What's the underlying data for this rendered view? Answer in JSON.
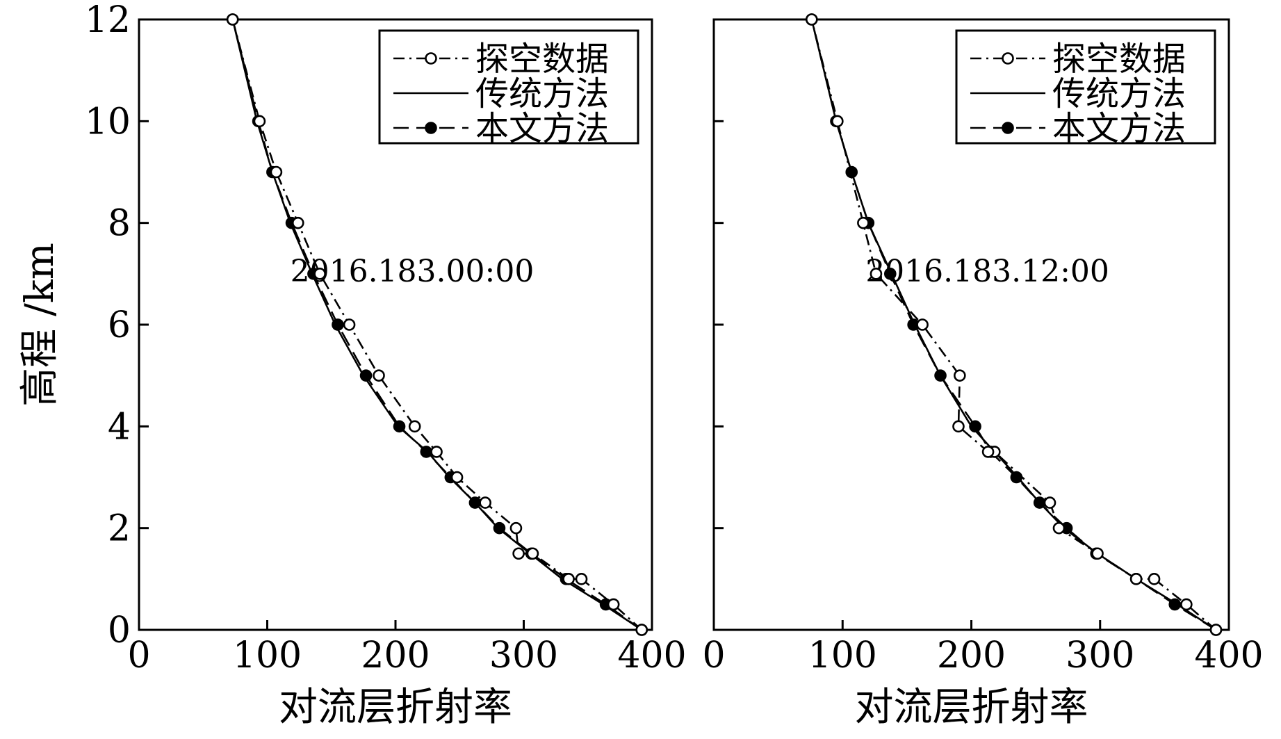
{
  "chart_data": [
    {
      "type": "line",
      "title": "",
      "annotation": "2016.183.00:00",
      "xlabel": "对流层折射率",
      "ylabel": "高程 /km",
      "xlim": [
        0,
        400
      ],
      "ylim": [
        0,
        12
      ],
      "xticks": [
        "0",
        "100",
        "200",
        "300",
        "400"
      ],
      "yticks": [
        "0",
        "2",
        "4",
        "6",
        "8",
        "10",
        "12"
      ],
      "legend_position": "top-right",
      "series": [
        {
          "name": "探空数据",
          "style": "dash-dot-open-circle",
          "x": [
            392,
            370,
            345,
            335,
            307,
            296,
            294,
            270,
            248,
            232,
            215,
            187,
            164,
            141,
            124,
            107,
            94,
            73
          ],
          "y": [
            0,
            0.5,
            1.0,
            1.0,
            1.5,
            1.5,
            2.0,
            2.5,
            3.0,
            3.5,
            4.0,
            5.0,
            6.0,
            7.0,
            8.0,
            9.0,
            10.0,
            12.0
          ]
        },
        {
          "name": "传统方法",
          "style": "solid",
          "x": [
            392,
            362,
            330,
            305,
            280,
            262,
            242,
            225,
            202,
            175,
            153,
            135,
            118,
            104,
            92,
            73
          ],
          "y": [
            0,
            0.5,
            1.0,
            1.5,
            2.0,
            2.5,
            3.0,
            3.5,
            4.0,
            5.0,
            6.0,
            7.0,
            8.0,
            9.0,
            10.0,
            12.0
          ]
        },
        {
          "name": "本文方法",
          "style": "dashed-filled-circle",
          "x": [
            392,
            364,
            333,
            306,
            281,
            262,
            243,
            224,
            203,
            177,
            155,
            136,
            119,
            104,
            93,
            73
          ],
          "y": [
            0,
            0.5,
            1.0,
            1.5,
            2.0,
            2.5,
            3.0,
            3.5,
            4.0,
            5.0,
            6.0,
            7.0,
            8.0,
            9.0,
            10.0,
            12.0
          ]
        }
      ]
    },
    {
      "type": "line",
      "title": "",
      "annotation": "2016.183.12:00",
      "xlabel": "对流层折射率",
      "ylabel": "",
      "xlim": [
        0,
        400
      ],
      "ylim": [
        0,
        12
      ],
      "xticks": [
        "0",
        "100",
        "200",
        "300",
        "400"
      ],
      "yticks": [],
      "legend_position": "top-right",
      "series": [
        {
          "name": "探空数据",
          "style": "dash-dot-open-circle",
          "x": [
            390,
            367,
            342,
            328,
            298,
            268,
            261,
            218,
            213,
            190,
            191,
            162,
            126,
            116,
            96,
            76
          ],
          "y": [
            0,
            0.5,
            1.0,
            1.0,
            1.5,
            2.0,
            2.5,
            3.5,
            3.5,
            4.0,
            5.0,
            6.0,
            7.0,
            8.0,
            10.0,
            12.0
          ]
        },
        {
          "name": "传统方法",
          "style": "solid",
          "x": [
            390,
            360,
            328,
            298,
            272,
            253,
            236,
            218,
            200,
            176,
            156,
            138,
            120,
            107,
            95,
            76
          ],
          "y": [
            0,
            0.5,
            1.0,
            1.5,
            2.0,
            2.5,
            3.0,
            3.5,
            4.0,
            5.0,
            6.0,
            7.0,
            8.0,
            9.0,
            10.0,
            12.0
          ]
        },
        {
          "name": "本文方法",
          "style": "dashed-filled-circle",
          "x": [
            390,
            358,
            328,
            297,
            274,
            253,
            235,
            215,
            203,
            176,
            155,
            137,
            120,
            107,
            95,
            76
          ],
          "y": [
            0,
            0.5,
            1.0,
            1.5,
            2.0,
            2.5,
            3.0,
            3.5,
            4.0,
            5.0,
            6.0,
            7.0,
            8.0,
            9.0,
            10.0,
            12.0
          ]
        }
      ]
    }
  ]
}
